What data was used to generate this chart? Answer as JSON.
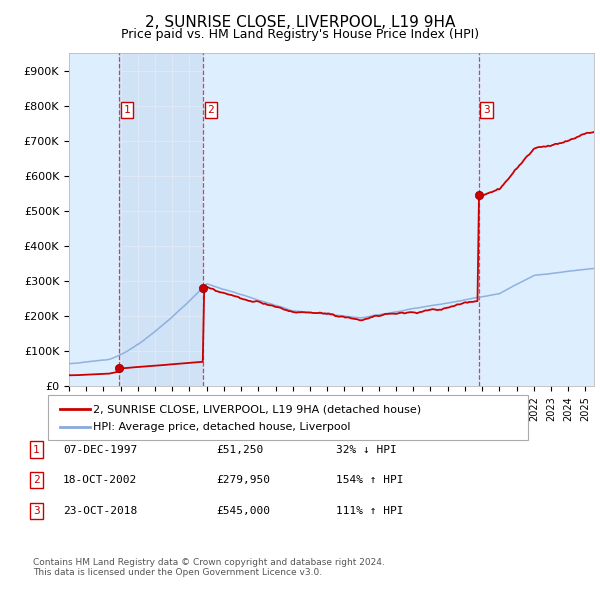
{
  "title": "2, SUNRISE CLOSE, LIVERPOOL, L19 9HA",
  "subtitle": "Price paid vs. HM Land Registry's House Price Index (HPI)",
  "title_fontsize": 11,
  "subtitle_fontsize": 9,
  "ylim": [
    0,
    950000
  ],
  "yticks": [
    0,
    100000,
    200000,
    300000,
    400000,
    500000,
    600000,
    700000,
    800000,
    900000
  ],
  "ytick_labels": [
    "£0",
    "£100K",
    "£200K",
    "£300K",
    "£400K",
    "£500K",
    "£600K",
    "£700K",
    "£800K",
    "£900K"
  ],
  "background_color": "#ffffff",
  "plot_bg_color": "#ddeeff",
  "grid_color": "#ffffff",
  "sale_dates": [
    1997.93,
    2002.8,
    2018.81
  ],
  "sale_prices": [
    51250,
    279950,
    545000
  ],
  "sale_labels": [
    "1",
    "2",
    "3"
  ],
  "vline_color": "#cc0000",
  "sale_marker_color": "#cc0000",
  "house_line_color": "#cc0000",
  "hpi_line_color": "#88aadd",
  "legend_house_label": "2, SUNRISE CLOSE, LIVERPOOL, L19 9HA (detached house)",
  "legend_hpi_label": "HPI: Average price, detached house, Liverpool",
  "table_entries": [
    {
      "num": "1",
      "date": "07-DEC-1997",
      "price": "£51,250",
      "change": "32% ↓ HPI"
    },
    {
      "num": "2",
      "date": "18-OCT-2002",
      "price": "£279,950",
      "change": "154% ↑ HPI"
    },
    {
      "num": "3",
      "date": "23-OCT-2018",
      "price": "£545,000",
      "change": "111% ↑ HPI"
    }
  ],
  "footer": "Contains HM Land Registry data © Crown copyright and database right 2024.\nThis data is licensed under the Open Government Licence v3.0.",
  "xmin": 1995,
  "xmax": 2025.5
}
